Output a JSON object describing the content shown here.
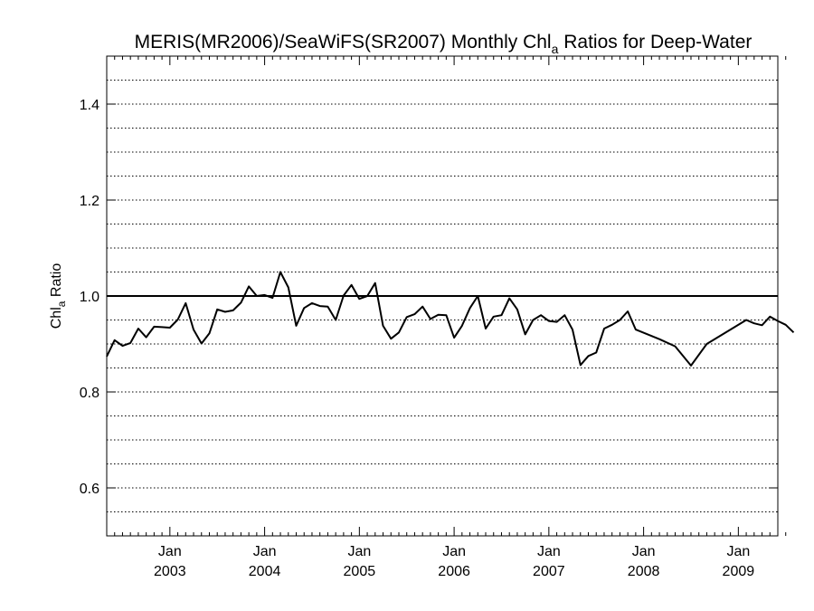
{
  "chart_data": {
    "type": "line",
    "title": {
      "pre": "MERIS(MR2006)/SeaWiFS(SR2007) Monthly Chl",
      "sub": "a",
      "post": " Ratios for Deep-Water"
    },
    "ylabel": {
      "pre": "Chl",
      "sub": "a",
      "post": " Ratio"
    },
    "xlabel": "",
    "xlim": [
      "2002-05",
      "2009-07"
    ],
    "ylim": [
      0.5,
      1.5
    ],
    "reference_line": 1.0,
    "grid": {
      "y": "dotted",
      "step": 0.05
    },
    "y_ticks": [
      "0.6",
      "0.8",
      "1.0",
      "1.2",
      "1.4"
    ],
    "x_ticks": [
      {
        "month": "Jan",
        "year": "2003"
      },
      {
        "month": "Jan",
        "year": "2004"
      },
      {
        "month": "Jan",
        "year": "2005"
      },
      {
        "month": "Jan",
        "year": "2006"
      },
      {
        "month": "Jan",
        "year": "2007"
      },
      {
        "month": "Jan",
        "year": "2008"
      },
      {
        "month": "Jan",
        "year": "2009"
      }
    ],
    "series": [
      {
        "color": "#000000",
        "points": [
          [
            "2002-05",
            0.874
          ],
          [
            "2002-06",
            0.908
          ],
          [
            "2002-07",
            0.896
          ],
          [
            "2002-08",
            0.902
          ],
          [
            "2002-09",
            0.932
          ],
          [
            "2002-10",
            0.914
          ],
          [
            "2002-11",
            0.936
          ],
          [
            "2002-12",
            0.935
          ],
          [
            "2003-01",
            0.934
          ],
          [
            "2003-02",
            0.951
          ],
          [
            "2003-03",
            0.985
          ],
          [
            "2003-04",
            0.93
          ],
          [
            "2003-05",
            0.901
          ],
          [
            "2003-06",
            0.922
          ],
          [
            "2003-07",
            0.972
          ],
          [
            "2003-08",
            0.967
          ],
          [
            "2003-09",
            0.97
          ],
          [
            "2003-10",
            0.986
          ],
          [
            "2003-11",
            1.02
          ],
          [
            "2003-12",
            1.0
          ],
          [
            "2004-01",
            1.002
          ],
          [
            "2004-02",
            0.996
          ],
          [
            "2004-03",
            1.05
          ],
          [
            "2004-04",
            1.018
          ],
          [
            "2004-05",
            0.938
          ],
          [
            "2004-06",
            0.975
          ],
          [
            "2004-07",
            0.985
          ],
          [
            "2004-08",
            0.979
          ],
          [
            "2004-09",
            0.978
          ],
          [
            "2004-10",
            0.95
          ],
          [
            "2004-11",
            1.001
          ],
          [
            "2004-12",
            1.023
          ],
          [
            "2005-01",
            0.994
          ],
          [
            "2005-02",
            1.0
          ],
          [
            "2005-03",
            1.027
          ],
          [
            "2005-04",
            0.938
          ],
          [
            "2005-05",
            0.911
          ],
          [
            "2005-06",
            0.924
          ],
          [
            "2005-07",
            0.956
          ],
          [
            "2005-08",
            0.962
          ],
          [
            "2005-09",
            0.978
          ],
          [
            "2005-10",
            0.952
          ],
          [
            "2005-11",
            0.961
          ],
          [
            "2005-12",
            0.96
          ],
          [
            "2006-01",
            0.913
          ],
          [
            "2006-02",
            0.938
          ],
          [
            "2006-03",
            0.975
          ],
          [
            "2006-04",
            1.0
          ],
          [
            "2006-05",
            0.932
          ],
          [
            "2006-06",
            0.957
          ],
          [
            "2006-07",
            0.96
          ],
          [
            "2006-08",
            0.995
          ],
          [
            "2006-09",
            0.972
          ],
          [
            "2006-10",
            0.92
          ],
          [
            "2006-11",
            0.95
          ],
          [
            "2006-12",
            0.96
          ],
          [
            "2007-01",
            0.948
          ],
          [
            "2007-02",
            0.946
          ],
          [
            "2007-03",
            0.96
          ],
          [
            "2007-04",
            0.93
          ],
          [
            "2007-05",
            0.856
          ],
          [
            "2007-06",
            0.875
          ],
          [
            "2007-07",
            0.882
          ],
          [
            "2007-08",
            0.932
          ],
          [
            "2007-09",
            0.94
          ],
          [
            "2007-10",
            0.95
          ],
          [
            "2007-11",
            0.968
          ],
          [
            "2007-12",
            0.93
          ],
          [
            "2008-03",
            0.91
          ],
          [
            "2008-05",
            0.895
          ],
          [
            "2008-07",
            0.855
          ],
          [
            "2008-09",
            0.9
          ],
          [
            "2008-12",
            0.93
          ],
          [
            "2009-02",
            0.95
          ],
          [
            "2009-03",
            0.943
          ],
          [
            "2009-04",
            0.939
          ],
          [
            "2009-05",
            0.957
          ],
          [
            "2009-06",
            0.948
          ],
          [
            "2009-07",
            0.94
          ],
          [
            "2009-08",
            0.924
          ]
        ]
      }
    ]
  }
}
